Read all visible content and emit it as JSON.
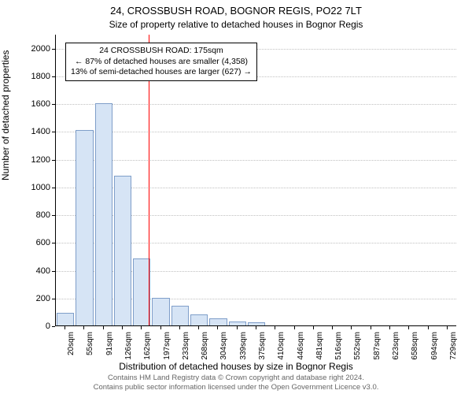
{
  "title": "24, CROSSBUSH ROAD, BOGNOR REGIS, PO22 7LT",
  "subtitle": "Size of property relative to detached houses in Bognor Regis",
  "chart": {
    "type": "histogram",
    "background_color": "#ffffff",
    "grid_color": "#c0c0c0",
    "axis_color": "#000000",
    "bar_fill": "#d6e4f5",
    "bar_stroke": "#7f9ec9",
    "bar_width_ratio": 0.92,
    "ylabel": "Number of detached properties",
    "xlabel": "Distribution of detached houses by size in Bognor Regis",
    "ylim": [
      0,
      2100
    ],
    "yticks": [
      0,
      200,
      400,
      600,
      800,
      1000,
      1200,
      1400,
      1600,
      1800,
      2000
    ],
    "categories": [
      "20sqm",
      "55sqm",
      "91sqm",
      "126sqm",
      "162sqm",
      "197sqm",
      "233sqm",
      "268sqm",
      "304sqm",
      "339sqm",
      "375sqm",
      "410sqm",
      "446sqm",
      "481sqm",
      "516sqm",
      "552sqm",
      "587sqm",
      "623sqm",
      "658sqm",
      "694sqm",
      "729sqm"
    ],
    "values": [
      90,
      1410,
      1600,
      1080,
      480,
      200,
      140,
      80,
      50,
      30,
      20,
      0,
      0,
      0,
      0,
      0,
      0,
      0,
      0,
      0,
      0
    ],
    "reference_line": {
      "x_value_sqm": 175,
      "color": "#ff0000"
    },
    "annotation": {
      "lines": [
        "24 CROSSBUSH ROAD: 175sqm",
        "← 87% of detached houses are smaller (4,358)",
        "13% of semi-detached houses are larger (627) →"
      ],
      "border_color": "#000000",
      "background_color": "#ffffff",
      "fontsize": 10.5
    },
    "title_fontsize": 13,
    "subtitle_fontsize": 12,
    "label_fontsize": 12,
    "tick_fontsize": 11
  },
  "footer": {
    "line1": "Contains HM Land Registry data © Crown copyright and database right 2024.",
    "line2": "Contains public sector information licensed under the Open Government Licence v3.0.",
    "color": "#666666",
    "fontsize": 9.5
  }
}
